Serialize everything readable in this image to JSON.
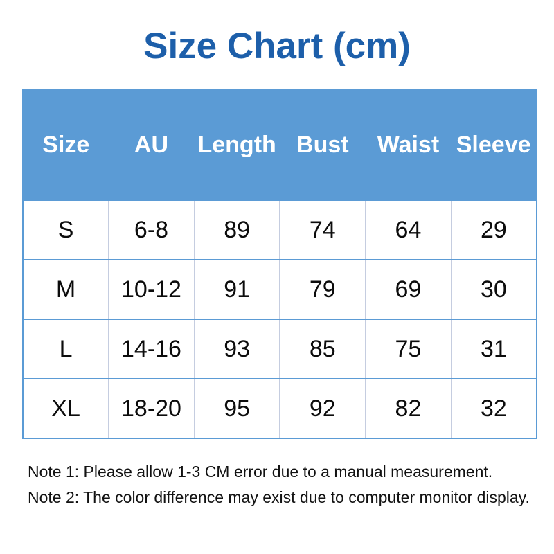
{
  "title": "Size Chart (cm)",
  "colors": {
    "title": "#1d5faa",
    "header_bg": "#5b9bd5",
    "header_text": "#ffffff",
    "grid_line": "#5b9bd5",
    "column_line": "#c5cde0",
    "body_text": "#0c0c0c"
  },
  "table": {
    "headers": [
      "Size",
      "AU",
      "Length",
      "Bust",
      "Waist",
      "Sleeve"
    ],
    "rows": [
      [
        "S",
        "6-8",
        "89",
        "74",
        "64",
        "29"
      ],
      [
        "M",
        "10-12",
        "91",
        "79",
        "69",
        "30"
      ],
      [
        "L",
        "14-16",
        "93",
        "85",
        "75",
        "31"
      ],
      [
        "XL",
        "18-20",
        "95",
        "92",
        "82",
        "32"
      ]
    ]
  },
  "notes": [
    "Note 1: Please allow 1-3 CM error due to a manual measurement.",
    "Note 2: The color difference may exist due to computer monitor display."
  ]
}
